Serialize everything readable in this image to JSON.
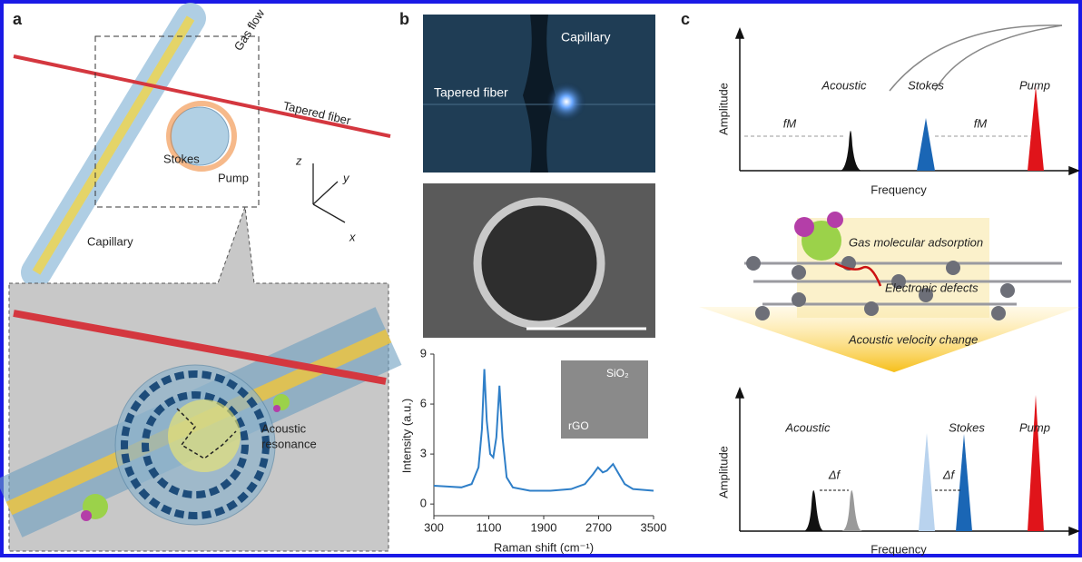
{
  "panels": {
    "a": {
      "label": "a",
      "gas_flow": "Gas flow",
      "tapered_fiber": "Tapered fiber",
      "stokes": "Stokes",
      "pump": "Pump",
      "axis_z": "z",
      "axis_y": "y",
      "axis_x": "x",
      "capillary": "Capillary",
      "acoustic_resonance": [
        "Acoustic",
        "resonance"
      ]
    },
    "b": {
      "label": "b",
      "capillary": "Capillary",
      "tapered_fiber": "Tapered fiber",
      "inset_top": "SiO₂",
      "inset_bottom": "rGO"
    },
    "c": {
      "label": "c",
      "top": {
        "y_label": "Amplitude",
        "x_label": "Frequency",
        "acoustic": "Acoustic",
        "stokes": "Stokes",
        "pump": "Pump",
        "fm_left": "fM",
        "fm_right": "fM"
      },
      "middle": {
        "adsorption": "Gas molecular adsorption",
        "defects": "Electronic defects",
        "velocity": "Acoustic velocity change"
      },
      "bottom": {
        "y_label": "Amplitude",
        "x_label": "Frequency",
        "acoustic": "Acoustic",
        "stokes": "Stokes",
        "pump": "Pump",
        "df_left": "Δf",
        "df_right": "Δf"
      }
    }
  },
  "chart_data": {
    "type": "line",
    "x_label": "Raman shift (cm⁻¹)",
    "y_label": "Intensity (a.u.)",
    "x": [
      300,
      500,
      700,
      850,
      950,
      1000,
      1035,
      1070,
      1120,
      1165,
      1210,
      1255,
      1300,
      1360,
      1450,
      1700,
      2000,
      2300,
      2500,
      2620,
      2690,
      2760,
      2820,
      2910,
      2980,
      3080,
      3200,
      3500
    ],
    "series": [
      {
        "color": "#2f7fc8",
        "values": [
          1.1,
          1.05,
          1.0,
          1.2,
          2.2,
          4.5,
          8.1,
          5.0,
          3.0,
          2.8,
          4.0,
          7.1,
          4.0,
          1.6,
          1.0,
          0.8,
          0.8,
          0.9,
          1.2,
          1.8,
          2.2,
          1.9,
          2.0,
          2.4,
          1.9,
          1.2,
          0.9,
          0.8
        ]
      }
    ],
    "xlim": [
      300,
      3500
    ],
    "xticks": [
      300,
      1100,
      1900,
      2700,
      3500
    ],
    "ylim": [
      -0.7,
      9
    ],
    "yticks": [
      0,
      3,
      6,
      9
    ]
  }
}
